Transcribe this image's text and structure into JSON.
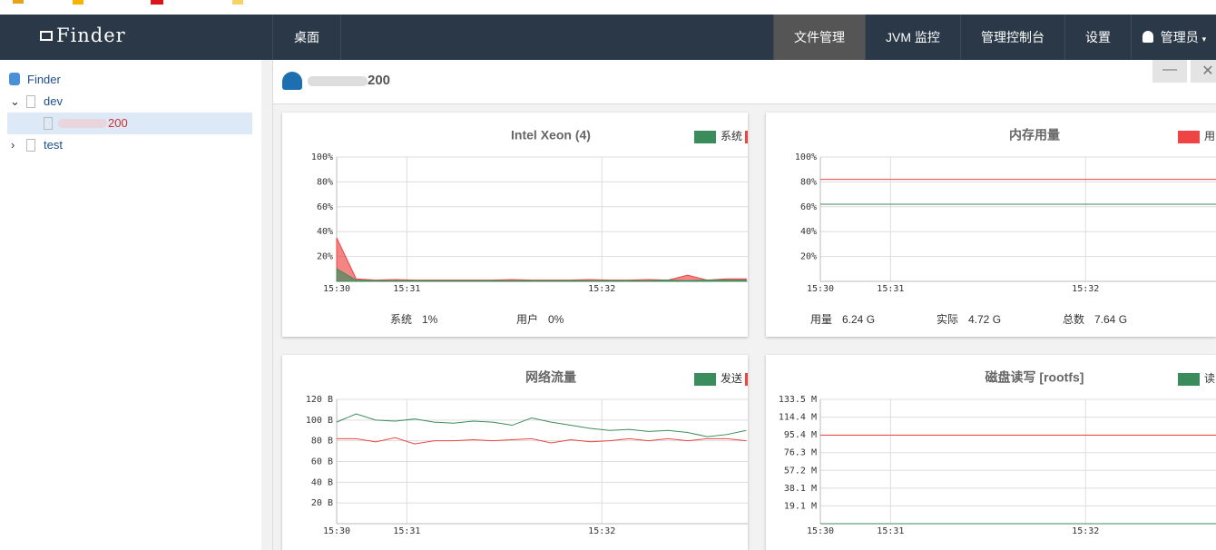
{
  "navbar": {
    "brand": "Finder",
    "left": [
      "桌面"
    ],
    "right": [
      "文件管理",
      "JVM 监控",
      "管理控制台",
      "设置",
      "管理员"
    ]
  },
  "sidebar": {
    "root": "Finder",
    "nodes": [
      "dev",
      "200",
      "test"
    ]
  },
  "main": {
    "title": "200"
  },
  "chart_data": [
    {
      "type": "area",
      "title": "Intel Xeon (4)",
      "x": [
        30.64,
        30.74,
        30.84,
        30.94,
        31.04,
        31.14,
        31.24,
        31.34,
        31.44,
        31.54,
        31.64,
        31.74,
        31.84,
        31.94,
        32.04,
        32.14,
        32.24,
        32.34,
        32.44,
        32.54,
        32.64,
        32.74
      ],
      "series": [
        {
          "name": "系统",
          "color": "#3b8c5c",
          "values": [
            10,
            1,
            0.5,
            0.5,
            0.5,
            0.5,
            0.5,
            0.5,
            0.5,
            0.5,
            0.5,
            0.5,
            0.5,
            0.5,
            0.5,
            0.5,
            0.5,
            1,
            0.5,
            1,
            1,
            1
          ]
        },
        {
          "color": "#ee4444",
          "values": [
            35,
            2,
            1,
            1.5,
            1,
            1,
            1,
            1,
            1,
            1.5,
            1,
            1,
            1,
            1.5,
            1,
            1,
            1.5,
            1,
            5,
            1,
            2,
            2
          ]
        }
      ],
      "xlim": [
        30.64,
        32.79
      ],
      "xticks": [
        {
          "value": 30.64,
          "label": "15:30"
        },
        {
          "value": 31,
          "label": "15:31"
        },
        {
          "value": 32,
          "label": "15:32"
        }
      ],
      "ylim": [
        0,
        100
      ],
      "yticks": [
        {
          "value": 20,
          "label": "20%"
        },
        {
          "value": 40,
          "label": "40%"
        },
        {
          "value": 60,
          "label": "60%"
        },
        {
          "value": 80,
          "label": "80%"
        },
        {
          "value": 100,
          "label": "100%"
        }
      ],
      "grid": true,
      "stats": [
        {
          "label": "系统",
          "value": "1%"
        },
        {
          "label": "用户",
          "value": "0%"
        }
      ]
    },
    {
      "type": "line",
      "title": "内存用量",
      "x": [
        30.64,
        30.74,
        30.84,
        30.94,
        31.04,
        31.14,
        31.24,
        31.34,
        31.44,
        31.54,
        31.64,
        31.74,
        31.84,
        31.94,
        32.04,
        32.14,
        32.24,
        32.34,
        32.44,
        32.54,
        32.64,
        32.74
      ],
      "series": [
        {
          "name": "用",
          "color": "#ee4444",
          "values": [
            82,
            82,
            82,
            82,
            82,
            82,
            82,
            82,
            82,
            82,
            82,
            82,
            82,
            82,
            82,
            82,
            82,
            82,
            82,
            82,
            82,
            82
          ]
        },
        {
          "color": "#3b8c5c",
          "values": [
            62,
            62,
            62,
            62,
            62,
            62,
            62,
            62,
            62,
            62,
            62,
            62,
            62,
            62,
            62,
            62,
            62,
            62,
            62,
            62,
            62,
            62
          ]
        }
      ],
      "xlim": [
        30.64,
        32.79
      ],
      "xticks": [
        {
          "value": 30.64,
          "label": "15:30"
        },
        {
          "value": 31,
          "label": "15:31"
        },
        {
          "value": 32,
          "label": "15:32"
        }
      ],
      "ylim": [
        0,
        100
      ],
      "yticks": [
        {
          "value": 20,
          "label": "20%"
        },
        {
          "value": 40,
          "label": "40%"
        },
        {
          "value": 60,
          "label": "60%"
        },
        {
          "value": 80,
          "label": "80%"
        },
        {
          "value": 100,
          "label": "100%"
        }
      ],
      "grid": true,
      "stats": [
        {
          "label": "用量",
          "value": "6.24 G"
        },
        {
          "label": "实际",
          "value": "4.72 G"
        },
        {
          "label": "总数",
          "value": "7.64 G"
        }
      ]
    },
    {
      "type": "line",
      "title": "网络流量",
      "x": [
        30.64,
        30.74,
        30.84,
        30.94,
        31.04,
        31.14,
        31.24,
        31.34,
        31.44,
        31.54,
        31.64,
        31.74,
        31.84,
        31.94,
        32.04,
        32.14,
        32.24,
        32.34,
        32.44,
        32.54,
        32.64,
        32.74
      ],
      "series": [
        {
          "name": "发送",
          "color": "#3b8c5c",
          "values": [
            98,
            106,
            100,
            99,
            101,
            98,
            97,
            99,
            98,
            95,
            102,
            98,
            95,
            92,
            90,
            91,
            89,
            90,
            88,
            84,
            86,
            90
          ]
        },
        {
          "color": "#ee4444",
          "values": [
            82,
            82,
            79,
            83,
            77,
            80,
            80,
            81,
            80,
            81,
            82,
            78,
            81,
            79,
            80,
            82,
            80,
            82,
            80,
            82,
            82,
            80
          ]
        }
      ],
      "xlim": [
        30.64,
        32.79
      ],
      "xticks": [
        {
          "value": 30.64,
          "label": "15:30"
        },
        {
          "value": 31,
          "label": "15:31"
        },
        {
          "value": 32,
          "label": "15:32"
        }
      ],
      "ylim": [
        0,
        120
      ],
      "yticks": [
        {
          "value": 20,
          "label": "20 B"
        },
        {
          "value": 40,
          "label": "40 B"
        },
        {
          "value": 60,
          "label": "60 B"
        },
        {
          "value": 80,
          "label": "80 B"
        },
        {
          "value": 100,
          "label": "100 B"
        },
        {
          "value": 120,
          "label": "120 B"
        }
      ],
      "grid": true
    },
    {
      "type": "line",
      "title": "磁盘读写 [rootfs]",
      "x": [
        30.64,
        30.74,
        30.84,
        30.94,
        31.04,
        31.14,
        31.24,
        31.34,
        31.44,
        31.54,
        31.64,
        31.74,
        31.84,
        31.94,
        32.04,
        32.14,
        32.24,
        32.34,
        32.44,
        32.54,
        32.64,
        32.74
      ],
      "series": [
        {
          "name": "读",
          "color": "#3b8c5c",
          "values": [
            0,
            0,
            0,
            0,
            0,
            0,
            0,
            0,
            0,
            0,
            0,
            0,
            0,
            0,
            0,
            0,
            0,
            0,
            0,
            0,
            0,
            0
          ]
        },
        {
          "color": "#ee4444",
          "values": [
            95,
            95,
            95,
            95,
            95,
            95,
            95,
            95,
            95,
            95,
            95,
            95,
            95,
            95,
            95,
            95,
            95,
            95,
            95,
            95,
            95,
            95
          ]
        }
      ],
      "xlim": [
        30.64,
        32.79
      ],
      "xticks": [
        {
          "value": 30.64,
          "label": "15:30"
        },
        {
          "value": 31,
          "label": "15:31"
        },
        {
          "value": 32,
          "label": "15:32"
        }
      ],
      "ylim": [
        0,
        133.5
      ],
      "yticks": [
        {
          "value": 19.1,
          "label": "19.1 M"
        },
        {
          "value": 38.1,
          "label": "38.1 M"
        },
        {
          "value": 57.2,
          "label": "57.2 M"
        },
        {
          "value": 76.3,
          "label": "76.3 M"
        },
        {
          "value": 95.4,
          "label": "95.4 M"
        },
        {
          "value": 114.4,
          "label": "114.4 M"
        },
        {
          "value": 133.5,
          "label": "133.5 M"
        }
      ],
      "grid": true
    }
  ]
}
